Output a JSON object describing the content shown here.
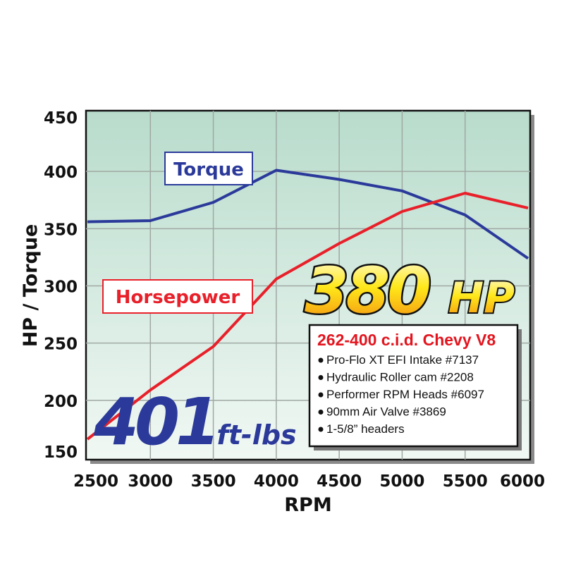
{
  "chart_data": {
    "type": "line",
    "xlabel": "RPM",
    "ylabel": "HP / Torque",
    "xlim": [
      2500,
      6000
    ],
    "ylim": [
      150,
      450
    ],
    "grid": true,
    "x": [
      2500,
      3000,
      3500,
      4000,
      4500,
      5000,
      5500,
      6000
    ],
    "x_ticks": [
      "2500",
      "3000",
      "3500",
      "4000",
      "4500",
      "5000",
      "5500",
      "6000"
    ],
    "y_ticks": [
      "450",
      "400",
      "350",
      "300",
      "250",
      "200",
      "150"
    ],
    "series": [
      {
        "name": "Torque",
        "color": "#2b3a9a",
        "values": [
          356,
          357,
          373,
          401,
          393,
          383,
          362,
          324
        ]
      },
      {
        "name": "Horsepower",
        "color": "#e8202a",
        "values": [
          166,
          209,
          247,
          306,
          337,
          365,
          381,
          368
        ]
      }
    ],
    "annotations": {
      "peak_hp_number": "380",
      "peak_hp_unit": "HP",
      "peak_torque_number": "401",
      "peak_torque_unit": "ft-lbs"
    },
    "spec_box": {
      "title": "262-400 c.i.d. Chevy V8",
      "items": [
        "Pro-Flo XT EFI Intake #7137",
        "Hydraulic Roller cam #2208",
        "Performer RPM Heads #6097",
        "90mm Air Valve #3869",
        "1-5/8” headers"
      ]
    },
    "colors": {
      "background_top": "#b8dccc",
      "background_bottom": "#f1f8f4",
      "grid": "#a0a8a4"
    }
  }
}
